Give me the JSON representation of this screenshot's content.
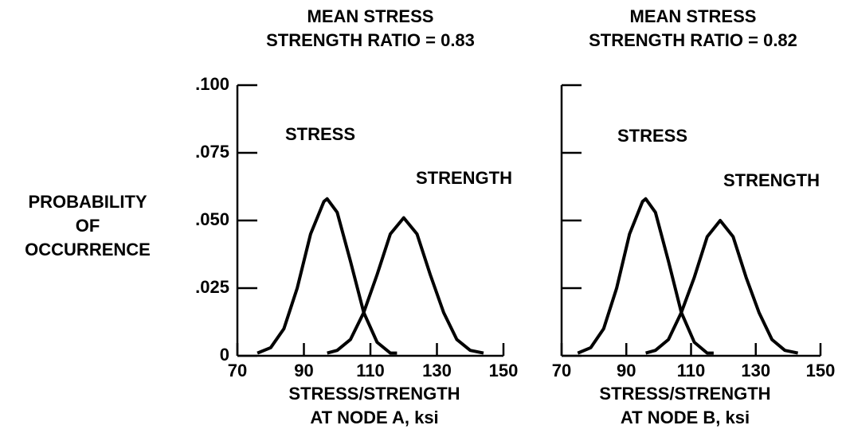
{
  "chart_data": [
    {
      "type": "line",
      "title": [
        "MEAN STRESS",
        "STRENGTH RATIO = 0.83"
      ],
      "ylabel": [
        "PROBABILITY",
        "OF",
        "OCCURRENCE"
      ],
      "xlabel": [
        "STRESS/STRENGTH",
        "AT NODE A, ksi"
      ],
      "xlim": [
        70,
        150
      ],
      "xticks": [
        70,
        90,
        110,
        130,
        150
      ],
      "ylim": [
        0,
        0.1
      ],
      "yticks": [
        0,
        {
          "value": 0.025,
          "label": ".025"
        },
        {
          "value": 0.05,
          "label": ".050"
        },
        {
          "value": 0.075,
          "label": ".075"
        },
        {
          "value": 0.1,
          "label": ".100"
        }
      ],
      "show_ytick_labels": true,
      "series": [
        {
          "name": "STRESS",
          "color": "#000000",
          "x": [
            76,
            80,
            84,
            88,
            92,
            96,
            97,
            100,
            104,
            108,
            112,
            116,
            118
          ],
          "values": [
            0.001,
            0.003,
            0.01,
            0.025,
            0.045,
            0.057,
            0.058,
            0.053,
            0.035,
            0.016,
            0.005,
            0.001,
            0.001
          ]
        },
        {
          "name": "STRENGTH",
          "color": "#000000",
          "x": [
            97,
            100,
            104,
            108,
            112,
            116,
            120,
            124,
            128,
            132,
            136,
            140,
            144
          ],
          "values": [
            0.001,
            0.002,
            0.006,
            0.016,
            0.03,
            0.045,
            0.051,
            0.045,
            0.03,
            0.016,
            0.006,
            0.002,
            0.001
          ]
        }
      ]
    },
    {
      "type": "line",
      "title": [
        "MEAN STRESS",
        "STRENGTH RATIO = 0.82"
      ],
      "xlabel": [
        "STRESS/STRENGTH",
        "AT NODE B, ksi"
      ],
      "xlim": [
        70,
        150
      ],
      "xticks": [
        70,
        90,
        110,
        130,
        150
      ],
      "ylim": [
        0,
        0.1
      ],
      "yticks": [
        0,
        0.025,
        0.05,
        0.075,
        0.1
      ],
      "show_ytick_labels": false,
      "series": [
        {
          "name": "STRESS",
          "color": "#000000",
          "x": [
            75,
            79,
            83,
            87,
            91,
            95,
            96,
            99,
            103,
            107,
            111,
            115,
            117
          ],
          "values": [
            0.001,
            0.003,
            0.01,
            0.025,
            0.045,
            0.057,
            0.058,
            0.053,
            0.035,
            0.016,
            0.005,
            0.001,
            0.001
          ]
        },
        {
          "name": "STRENGTH",
          "color": "#000000",
          "x": [
            96,
            99,
            103,
            107,
            111,
            115,
            119,
            123,
            127,
            131,
            135,
            139,
            143
          ],
          "values": [
            0.001,
            0.002,
            0.006,
            0.016,
            0.029,
            0.044,
            0.05,
            0.044,
            0.029,
            0.016,
            0.006,
            0.002,
            0.001
          ]
        }
      ]
    }
  ]
}
